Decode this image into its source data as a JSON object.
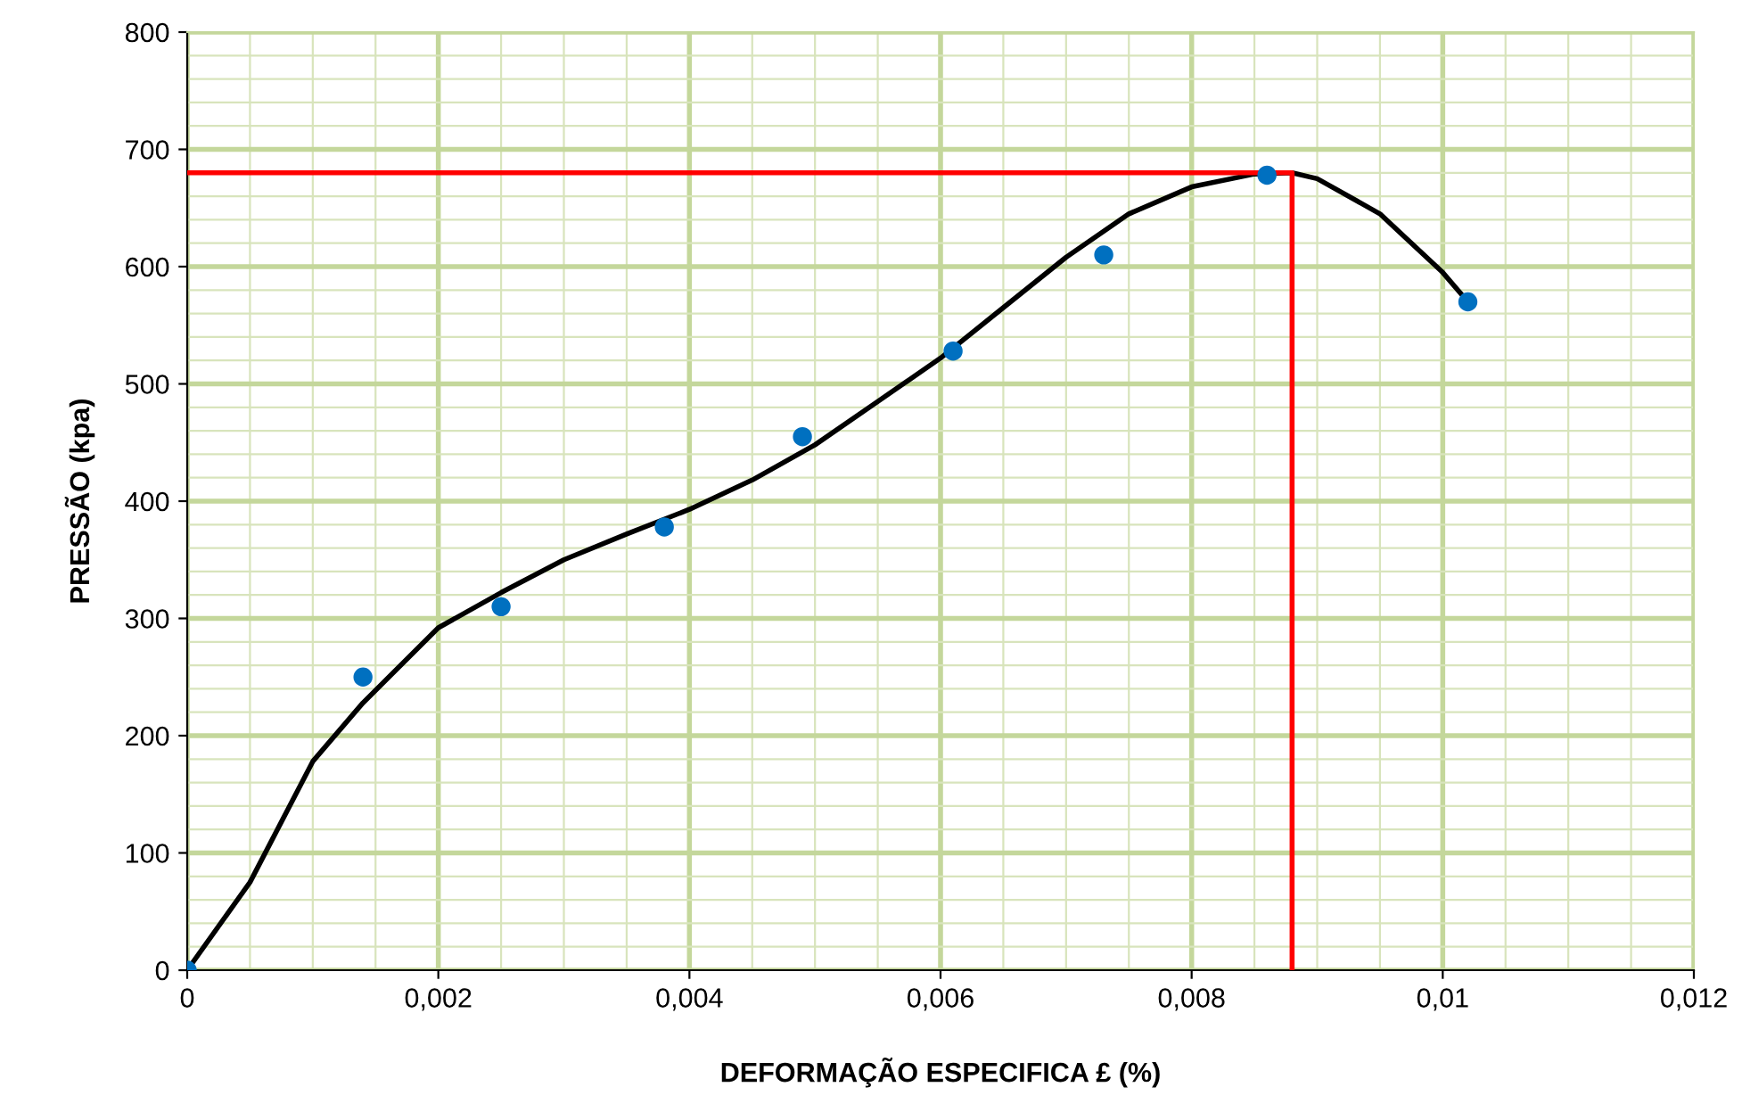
{
  "chart_data": {
    "type": "scatter",
    "xlabel": "DEFORMAÇÃO ESPECIFICA £ (%)",
    "ylabel": "PRESSÃO (kpa)",
    "xlim": [
      0,
      0.012
    ],
    "ylim": [
      0,
      800
    ],
    "xticks": [
      {
        "value": 0,
        "label": "0"
      },
      {
        "value": 0.002,
        "label": "0,002"
      },
      {
        "value": 0.004,
        "label": "0,004"
      },
      {
        "value": 0.006,
        "label": "0,006"
      },
      {
        "value": 0.008,
        "label": "0,008"
      },
      {
        "value": 0.01,
        "label": "0,01"
      },
      {
        "value": 0.012,
        "label": "0,012"
      }
    ],
    "yticks": [
      0,
      100,
      200,
      300,
      400,
      500,
      600,
      700,
      800
    ],
    "grid": true,
    "series": [
      {
        "type": "line",
        "color": "#000000",
        "x": [
          0,
          0.0005,
          0.001,
          0.0014,
          0.002,
          0.0025,
          0.003,
          0.0035,
          0.004,
          0.0045,
          0.005,
          0.0055,
          0.006,
          0.0065,
          0.007,
          0.0075,
          0.008,
          0.0085,
          0.0088,
          0.009,
          0.0095,
          0.01,
          0.0102
        ],
        "values": [
          0,
          75,
          178,
          228,
          292,
          322,
          350,
          372,
          393,
          418,
          448,
          485,
          522,
          565,
          608,
          645,
          668,
          679,
          680,
          675,
          645,
          595,
          570
        ]
      },
      {
        "type": "line",
        "color": "#ff0000",
        "x": [
          0,
          0.0088,
          0.0088
        ],
        "values": [
          680,
          680,
          0
        ]
      },
      {
        "marker": "circle",
        "color": "#0070c0",
        "x": [
          0,
          0.0014,
          0.0025,
          0.0038,
          0.0049,
          0.0061,
          0.0073,
          0.0086,
          0.0102
        ],
        "values": [
          0,
          250,
          310,
          378,
          455,
          528,
          610,
          678,
          570
        ]
      }
    ]
  }
}
